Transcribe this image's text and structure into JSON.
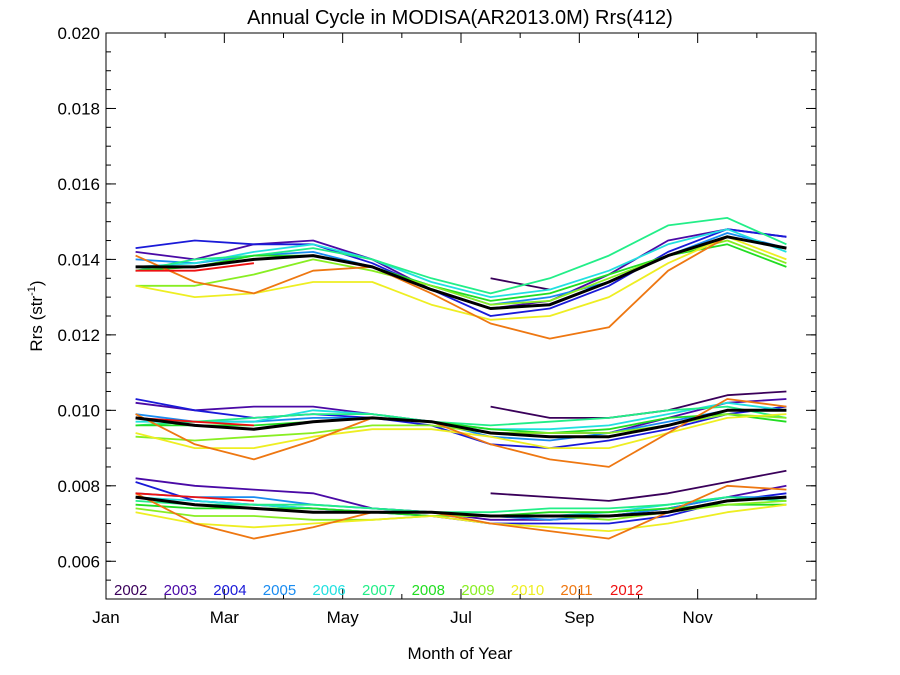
{
  "chart_data": {
    "type": "line",
    "title": "Annual Cycle in MODISA(AR2013.0M) Rrs(412)",
    "xlabel": "Month of Year",
    "ylabel": "Rrs (str",
    "ylabel_sup": "-1",
    "ylabel_end": ")",
    "xlim": [
      0,
      12
    ],
    "ylim": [
      0.005,
      0.02
    ],
    "x_ticks": [
      {
        "value": 0,
        "label": "Jan"
      },
      {
        "value": 2,
        "label": "Mar"
      },
      {
        "value": 4,
        "label": "May"
      },
      {
        "value": 6,
        "label": "Jul"
      },
      {
        "value": 8,
        "label": "Sep"
      },
      {
        "value": 10,
        "label": "Nov"
      }
    ],
    "y_ticks": [
      {
        "value": 0.006,
        "label": "0.006"
      },
      {
        "value": 0.008,
        "label": "0.008"
      },
      {
        "value": 0.01,
        "label": "0.010"
      },
      {
        "value": 0.012,
        "label": "0.012"
      },
      {
        "value": 0.014,
        "label": "0.014"
      },
      {
        "value": 0.016,
        "label": "0.016"
      },
      {
        "value": 0.018,
        "label": "0.018"
      },
      {
        "value": 0.02,
        "label": "0.020"
      }
    ],
    "legend_position": "bottom-left",
    "grid": false,
    "x": [
      0.5,
      1.5,
      2.5,
      3.5,
      4.5,
      5.5,
      6.5,
      7.5,
      8.5,
      9.5,
      10.5,
      11.5
    ],
    "series": [
      {
        "name": "2002",
        "color": "#3a005a",
        "groups": [
          [
            null,
            null,
            null,
            null,
            null,
            null,
            0.0135,
            0.0132,
            null,
            null,
            null,
            null
          ],
          [
            null,
            null,
            null,
            null,
            null,
            null,
            0.0101,
            0.0098,
            0.0098,
            0.01,
            0.0104,
            0.0105
          ],
          [
            null,
            null,
            null,
            null,
            null,
            null,
            0.0078,
            0.0077,
            0.0076,
            0.0078,
            0.0081,
            0.0084
          ]
        ]
      },
      {
        "name": "2003",
        "color": "#4a0aa6",
        "groups": [
          [
            0.0142,
            0.014,
            0.0144,
            0.0145,
            0.014,
            0.0132,
            0.0127,
            0.0129,
            0.0136,
            0.0145,
            0.0148,
            0.0146
          ],
          [
            0.0102,
            0.01,
            0.0101,
            0.0101,
            0.0099,
            0.0097,
            0.0094,
            0.0094,
            0.0094,
            0.0098,
            0.0102,
            0.0103
          ],
          [
            0.0082,
            0.008,
            0.0079,
            0.0078,
            0.0074,
            0.0073,
            0.0071,
            0.0071,
            0.0072,
            0.0074,
            0.0077,
            0.008
          ]
        ]
      },
      {
        "name": "2004",
        "color": "#1a1ad8",
        "groups": [
          [
            0.0143,
            0.0145,
            0.0144,
            0.0144,
            0.0139,
            0.0132,
            0.0125,
            0.0127,
            0.0133,
            0.0142,
            0.0148,
            0.0146
          ],
          [
            0.0103,
            0.01,
            0.0098,
            0.0099,
            0.0098,
            0.0096,
            0.0091,
            0.009,
            0.0092,
            0.0095,
            0.0099,
            0.0101
          ],
          [
            0.0081,
            0.0076,
            0.0075,
            0.0074,
            0.0073,
            0.0072,
            0.007,
            0.007,
            0.007,
            0.0072,
            0.0076,
            0.0078
          ]
        ]
      },
      {
        "name": "2005",
        "color": "#1a8cf0",
        "groups": [
          [
            0.014,
            0.0139,
            0.0141,
            0.0142,
            0.0138,
            0.0133,
            0.0128,
            0.013,
            0.0134,
            0.0141,
            0.0147,
            0.0143
          ],
          [
            0.0099,
            0.0097,
            0.0097,
            0.0098,
            0.0098,
            0.0097,
            0.0093,
            0.0092,
            0.0094,
            0.0097,
            0.01,
            0.01
          ],
          [
            0.0078,
            0.0077,
            0.0077,
            0.0075,
            0.0074,
            0.0073,
            0.0072,
            0.0071,
            0.0072,
            0.0074,
            0.0077,
            0.0077
          ]
        ]
      },
      {
        "name": "2006",
        "color": "#22e0e0",
        "groups": [
          [
            0.0138,
            0.0139,
            0.0142,
            0.0144,
            0.014,
            0.0134,
            0.013,
            0.0132,
            0.0137,
            0.0144,
            0.0148,
            0.0142
          ],
          [
            0.0097,
            0.0097,
            0.0097,
            0.01,
            0.0099,
            0.0097,
            0.0095,
            0.0095,
            0.0096,
            0.0099,
            0.0102,
            0.01
          ],
          [
            0.0077,
            0.0076,
            0.0075,
            0.0074,
            0.0073,
            0.0073,
            0.0072,
            0.0072,
            0.0073,
            0.0075,
            0.0077,
            0.0076
          ]
        ]
      },
      {
        "name": "2007",
        "color": "#22ee88",
        "groups": [
          [
            0.0137,
            0.014,
            0.0141,
            0.0143,
            0.014,
            0.0135,
            0.0131,
            0.0135,
            0.0141,
            0.0149,
            0.0151,
            0.0144
          ],
          [
            0.0096,
            0.0097,
            0.0098,
            0.0099,
            0.0099,
            0.0097,
            0.0096,
            0.0097,
            0.0098,
            0.01,
            0.0101,
            0.0098
          ],
          [
            0.0076,
            0.0075,
            0.0075,
            0.0075,
            0.0074,
            0.0073,
            0.0073,
            0.0074,
            0.0074,
            0.0075,
            0.0077,
            0.0076
          ]
        ]
      },
      {
        "name": "2008",
        "color": "#22dd22",
        "groups": [
          [
            0.0137,
            0.0138,
            0.0141,
            0.0141,
            0.0138,
            0.0133,
            0.0129,
            0.0131,
            0.0136,
            0.0141,
            0.0144,
            0.0138
          ],
          [
            0.0096,
            0.0096,
            0.0096,
            0.0097,
            0.0098,
            0.0097,
            0.0095,
            0.0094,
            0.0095,
            0.0098,
            0.0099,
            0.0097
          ],
          [
            0.0075,
            0.0074,
            0.0074,
            0.0074,
            0.0073,
            0.0072,
            0.0072,
            0.0073,
            0.0073,
            0.0074,
            0.0075,
            0.0075
          ]
        ]
      },
      {
        "name": "2009",
        "color": "#88ee22",
        "groups": [
          [
            0.0133,
            0.0133,
            0.0136,
            0.014,
            0.0137,
            0.0133,
            0.0128,
            0.0129,
            0.0135,
            0.0141,
            0.0145,
            0.0139
          ],
          [
            0.0093,
            0.0092,
            0.0093,
            0.0094,
            0.0096,
            0.0096,
            0.0094,
            0.0094,
            0.0094,
            0.0096,
            0.0099,
            0.0098
          ],
          [
            0.0074,
            0.0072,
            0.0072,
            0.0071,
            0.0071,
            0.0072,
            0.0072,
            0.0072,
            0.0071,
            0.0073,
            0.0075,
            0.0076
          ]
        ]
      },
      {
        "name": "2010",
        "color": "#eeee22",
        "groups": [
          [
            0.0133,
            0.013,
            0.0131,
            0.0134,
            0.0134,
            0.0128,
            0.0124,
            0.0125,
            0.013,
            0.0139,
            0.0146,
            0.014
          ],
          [
            0.0094,
            0.009,
            0.009,
            0.0093,
            0.0095,
            0.0095,
            0.0093,
            0.009,
            0.009,
            0.0094,
            0.0098,
            0.0099
          ],
          [
            0.0073,
            0.007,
            0.0069,
            0.007,
            0.0071,
            0.0072,
            0.007,
            0.0069,
            0.0068,
            0.007,
            0.0073,
            0.0075
          ]
        ]
      },
      {
        "name": "2011",
        "color": "#ee7711",
        "groups": [
          [
            0.0141,
            0.0134,
            0.0131,
            0.0137,
            0.0138,
            0.0131,
            0.0123,
            0.0119,
            0.0122,
            0.0137,
            0.0146,
            0.0143
          ],
          [
            0.0099,
            0.0091,
            0.0087,
            0.0092,
            0.0098,
            0.0097,
            0.0091,
            0.0087,
            0.0085,
            0.0094,
            0.0103,
            0.0101
          ],
          [
            0.0078,
            0.007,
            0.0066,
            0.0069,
            0.0073,
            0.0073,
            0.007,
            0.0068,
            0.0066,
            0.0073,
            0.008,
            0.0079
          ]
        ]
      },
      {
        "name": "2012",
        "color": "#ee1111",
        "groups": [
          [
            0.0137,
            0.0137,
            0.0139,
            null,
            null,
            null,
            null,
            null,
            null,
            null,
            null,
            null
          ],
          [
            0.0098,
            0.0097,
            0.0096,
            null,
            null,
            null,
            null,
            null,
            null,
            null,
            null,
            null
          ],
          [
            0.0078,
            0.0077,
            0.0076,
            null,
            null,
            null,
            null,
            null,
            null,
            null,
            null,
            null
          ]
        ]
      },
      {
        "name": "",
        "color": "#000000",
        "is_mean": true,
        "groups": [
          [
            0.0138,
            0.0138,
            0.014,
            0.0141,
            0.0138,
            0.0132,
            0.0127,
            0.0128,
            0.0134,
            0.0141,
            0.0146,
            0.0143
          ],
          [
            0.0098,
            0.0096,
            0.0095,
            0.0097,
            0.0098,
            0.0097,
            0.0094,
            0.0093,
            0.0093,
            0.0096,
            0.01,
            0.01
          ],
          [
            0.0077,
            0.0075,
            0.0074,
            0.0073,
            0.0073,
            0.0073,
            0.0072,
            0.0072,
            0.0072,
            0.0073,
            0.0076,
            0.0077
          ]
        ]
      }
    ]
  }
}
